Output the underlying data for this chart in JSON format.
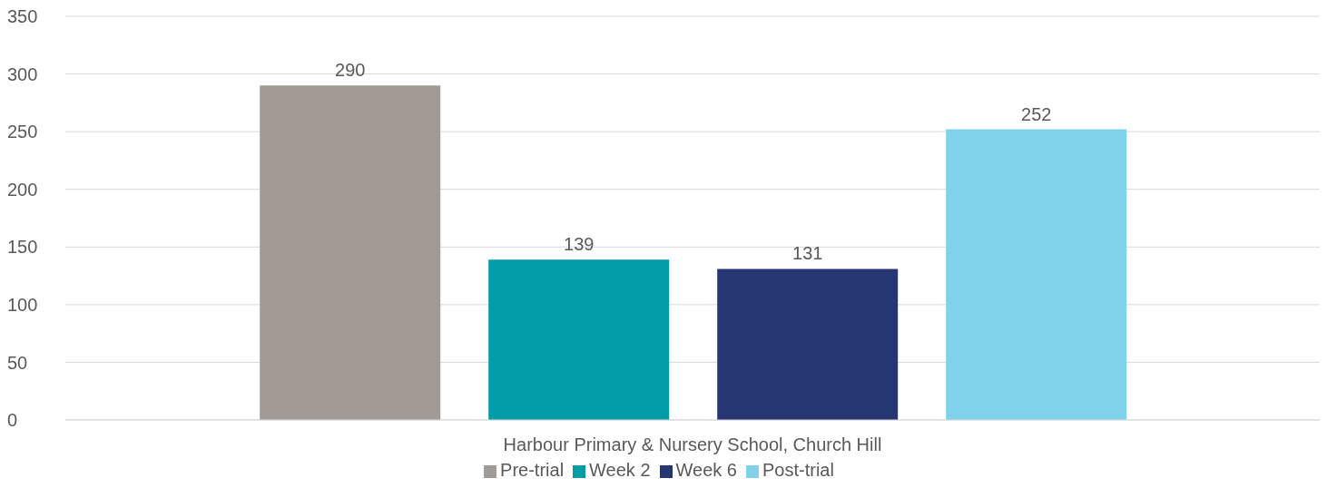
{
  "chart_data": {
    "type": "bar",
    "categories": [
      "Harbour Primary & Nursery School, Church Hill"
    ],
    "series": [
      {
        "name": "Pre-trial",
        "color": "#a29a94",
        "values": [
          290
        ]
      },
      {
        "name": "Week 2",
        "color": "#029ca8",
        "values": [
          139
        ]
      },
      {
        "name": "Week 6",
        "color": "#263672",
        "values": [
          131
        ]
      },
      {
        "name": "Post-trial",
        "color": "#80d1ea",
        "values": [
          252
        ]
      }
    ],
    "ylim": [
      0,
      350
    ],
    "yticks": [
      0,
      50,
      100,
      150,
      200,
      250,
      300,
      350
    ],
    "grid": "y",
    "legend": "bottom",
    "data_labels": true
  }
}
